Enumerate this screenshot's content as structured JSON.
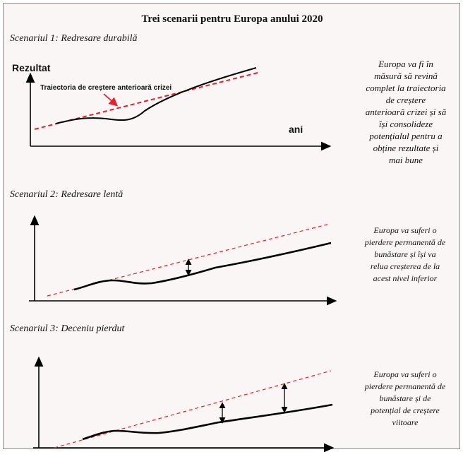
{
  "title": "Trei scenarii pentru Europa anului 2020",
  "scenarios": [
    {
      "label": "Scenariul 1: Redresare durabilă",
      "y_axis_label": "Rezultat",
      "x_axis_label": "ani",
      "callout": "Traiectoria de creștere anterioară crizei",
      "description": [
        "Europa va fi în",
        "măsură să revină",
        "complet la traiectoria",
        "de creștere",
        "anterioară crizei și să",
        "își consolideze",
        "potențialul pentru a",
        "obține rezultate și",
        "mai bune"
      ]
    },
    {
      "label": "Scenariul 2: Redresare lentă",
      "description": [
        "Europa va suferi o",
        "pierdere permanentă de",
        "bunăstare și își va",
        "relua creșterea de la",
        "acest nivel inferior"
      ]
    },
    {
      "label": "Scenariul 3: Deceniu pierdut",
      "description": [
        "Europa va suferi o",
        "pierdere permanentă de",
        "bunăstare și de",
        "potențial de creștere",
        "viitoare"
      ]
    }
  ],
  "colors": {
    "trend_line": "#e8202a",
    "output_line": "#000000",
    "callout_arrow": "#e8202a",
    "background": "#f9f6f5"
  }
}
